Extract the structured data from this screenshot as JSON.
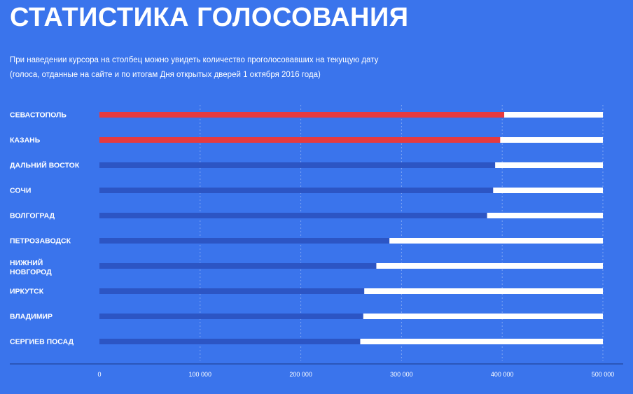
{
  "header": {
    "title": "СТАТИСТИКА ГОЛОСОВАНИЯ",
    "subtitle_line1": "При наведении курсора на столбец можно увидеть количество проголосовавших на текущую дату",
    "subtitle_line2": "(голоса, отданные на сайте и по итогам Дня открытых дверей 1 октября 2016 года)"
  },
  "colors": {
    "background": "#3a74ec",
    "highlight_bar": "#e63a3f",
    "normal_bar": "#2c55c4",
    "track": "#ffffff",
    "text": "#ffffff"
  },
  "chart_data": {
    "type": "bar",
    "orientation": "horizontal",
    "title": "СТАТИСТИКА ГОЛОСОВАНИЯ",
    "xlabel": "",
    "ylabel": "",
    "xlim": [
      0,
      500000
    ],
    "grid": true,
    "categories": [
      [
        "СЕВАСТОПОЛЬ"
      ],
      [
        "КАЗАНЬ"
      ],
      [
        "ДАЛЬНИЙ ВОСТОК"
      ],
      [
        "СОЧИ"
      ],
      [
        "ВОЛГОГРАД"
      ],
      [
        "ПЕТРОЗАВОДСК"
      ],
      [
        "НИЖНИЙ",
        "НОВГОРОД"
      ],
      [
        "ИРКУТСК"
      ],
      [
        "ВЛАДИМИР"
      ],
      [
        "СЕРГИЕВ ПОСАД"
      ]
    ],
    "values": [
      402000,
      398000,
      393000,
      391000,
      385000,
      288000,
      275000,
      263000,
      262000,
      259000
    ],
    "highlighted": [
      true,
      true,
      false,
      false,
      false,
      false,
      false,
      false,
      false,
      false
    ],
    "ticks": [
      0,
      100000,
      200000,
      300000,
      400000,
      500000
    ],
    "tick_labels": [
      "0",
      "100 000",
      "200 000",
      "300 000",
      "400 000",
      "500 000"
    ]
  }
}
